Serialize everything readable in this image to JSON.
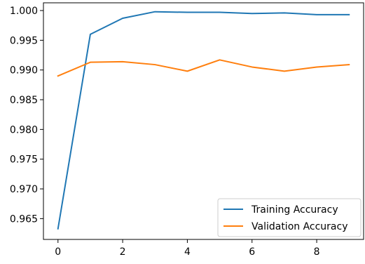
{
  "chart_data": {
    "type": "line",
    "title": "",
    "xlabel": "",
    "ylabel": "",
    "x": [
      0,
      1,
      2,
      3,
      4,
      5,
      6,
      7,
      8,
      9
    ],
    "xlim": [
      -0.45,
      9.45
    ],
    "ylim": [
      0.9615,
      1.0013
    ],
    "xticks": [
      0,
      2,
      4,
      6,
      8
    ],
    "xtick_labels": [
      "0",
      "2",
      "4",
      "6",
      "8"
    ],
    "yticks": [
      0.965,
      0.97,
      0.975,
      0.98,
      0.985,
      0.99,
      0.995,
      1.0
    ],
    "ytick_labels": [
      "0.965",
      "0.970",
      "0.975",
      "0.980",
      "0.985",
      "0.990",
      "0.995",
      "1.000"
    ],
    "grid": false,
    "legend_position": "bottom-right",
    "series": [
      {
        "name": "Training Accuracy",
        "color": "#1f77b4",
        "values": [
          0.9633,
          0.996,
          0.9987,
          0.9998,
          0.9997,
          0.9997,
          0.9995,
          0.9996,
          0.9993,
          0.9993
        ]
      },
      {
        "name": "Validation Accuracy",
        "color": "#ff7f0e",
        "values": [
          0.989,
          0.9913,
          0.9914,
          0.9909,
          0.9898,
          0.9917,
          0.9905,
          0.9898,
          0.9905,
          0.9909
        ]
      }
    ]
  }
}
